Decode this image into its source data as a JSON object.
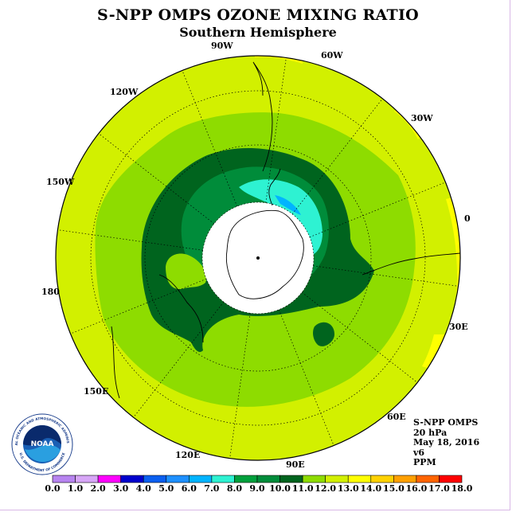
{
  "title": "S-NPP OMPS OZONE MIXING RATIO",
  "subtitle": "Southern Hemisphere",
  "longitude_labels": [
    "90W",
    "60W",
    "30W",
    "0",
    "30E",
    "60E",
    "90E",
    "120E",
    "150E",
    "180",
    "150W",
    "120W"
  ],
  "info": {
    "instrument": "S-NPP OMPS",
    "level": "20 hPa",
    "date": "May 18, 2016",
    "version": "v6",
    "units": "PPM"
  },
  "logo": {
    "text": "NOAA",
    "ring_text": "NATIONAL OCEANIC AND ATMOSPHERIC ADMINISTRATION",
    "bottom_text": "U.S. DEPARTMENT OF COMMERCE"
  },
  "colorbar": {
    "labels": [
      "0.0",
      "1.0",
      "2.0",
      "3.0",
      "4.0",
      "5.0",
      "6.0",
      "7.0",
      "8.0",
      "9.0",
      "10.0",
      "11.0",
      "12.0",
      "13.0",
      "14.0",
      "15.0",
      "16.0",
      "17.0",
      "18.0"
    ],
    "colors": [
      "#b784f0",
      "#d7a6f7",
      "#ff00ff",
      "#0000cd",
      "#0a5ff0",
      "#1e90ff",
      "#00b4ff",
      "#2ef2d2",
      "#00a03c",
      "#008c3a",
      "#00641e",
      "#8edc00",
      "#d2f000",
      "#ffff00",
      "#ffd200",
      "#ffa000",
      "#ff6400",
      "#ff0000",
      "#8c5a3c"
    ]
  },
  "chart_data": {
    "type": "heatmap",
    "title": "S-NPP OMPS OZONE MIXING RATIO",
    "subtitle": "Southern Hemisphere",
    "projection": "polar stereographic, south pole",
    "variable": "ozone mixing ratio",
    "units": "PPM",
    "pressure_level": "20 hPa",
    "date": "May 18, 2016",
    "version": "v6",
    "scale": {
      "min": 0.0,
      "max": 18.0,
      "step": 1.0
    },
    "no_data_region": "polar night cap around South Pole",
    "features": [
      {
        "region": "polar vortex edge ring",
        "range": [
          8.0,
          10.0
        ]
      },
      {
        "region": "near Antarctic Peninsula",
        "range": [
          7.0,
          8.0
        ]
      },
      {
        "region": "mid latitudes",
        "range": [
          10.0,
          11.0
        ]
      },
      {
        "region": "outer latitudes",
        "range": [
          11.0,
          12.0
        ]
      },
      {
        "region": "scattered patches at map edge",
        "range": [
          12.0,
          13.0
        ]
      }
    ]
  }
}
